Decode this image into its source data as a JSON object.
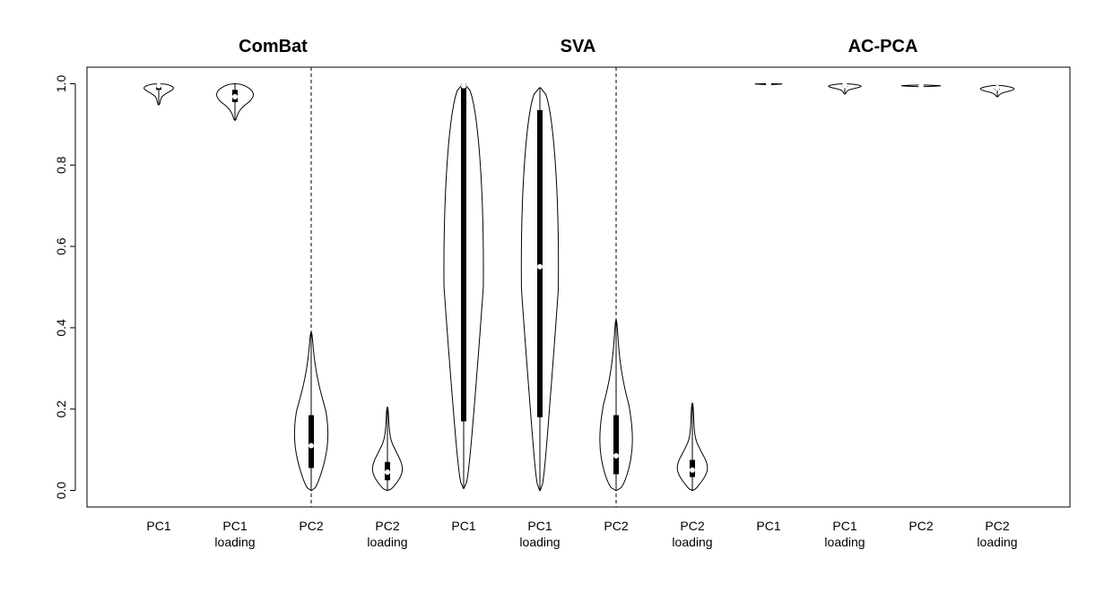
{
  "chart_data": {
    "type": "violin",
    "panels": [
      {
        "title": "ComBat",
        "categories": [
          {
            "label": [
              "PC1",
              ""
            ],
            "min": 0.948,
            "q1": 0.985,
            "median": 0.995,
            "q3": 0.998,
            "max": 1.0,
            "mode": 0.995,
            "width": 0.8
          },
          {
            "label": [
              "PC1",
              "loading"
            ],
            "min": 0.91,
            "q1": 0.955,
            "median": 0.968,
            "q3": 0.985,
            "max": 1.0,
            "mode": 0.985,
            "width": 0.85
          },
          {
            "label": [
              "PC2",
              ""
            ],
            "min": 0.0,
            "q1": 0.055,
            "median": 0.11,
            "q3": 0.185,
            "max": 0.39,
            "mode": 0.1,
            "width": 0.7
          },
          {
            "label": [
              "PC2",
              "loading"
            ],
            "min": 0.0,
            "q1": 0.025,
            "median": 0.045,
            "q3": 0.07,
            "max": 0.205,
            "mode": 0.04,
            "width": 0.7
          }
        ]
      },
      {
        "title": "SVA",
        "categories": [
          {
            "label": [
              "PC1",
              ""
            ],
            "min": 0.005,
            "q1": 0.17,
            "median": 0.995,
            "q3": 1.0,
            "max": 1.0,
            "mode": 0.995,
            "width": 0.85
          },
          {
            "label": [
              "PC1",
              "loading"
            ],
            "min": 0.0,
            "q1": 0.18,
            "median": 0.55,
            "q3": 0.935,
            "max": 0.99,
            "mode": 0.95,
            "width": 0.8
          },
          {
            "label": [
              "PC2",
              ""
            ],
            "min": 0.0,
            "q1": 0.04,
            "median": 0.085,
            "q3": 0.185,
            "max": 0.42,
            "mode": 0.07,
            "width": 0.75
          },
          {
            "label": [
              "PC2",
              "loading"
            ],
            "min": 0.0,
            "q1": 0.033,
            "median": 0.05,
            "q3": 0.075,
            "max": 0.215,
            "mode": 0.045,
            "width": 0.7
          }
        ]
      },
      {
        "title": "AC-PCA",
        "categories": [
          {
            "label": [
              "PC1",
              ""
            ],
            "min": 0.997,
            "q1": 0.999,
            "median": 1.0,
            "q3": 1.0,
            "max": 1.0,
            "mode": 1.0,
            "width": 0.8
          },
          {
            "label": [
              "PC1",
              "loading"
            ],
            "min": 0.975,
            "q1": 0.992,
            "median": 0.996,
            "q3": 0.998,
            "max": 1.0,
            "mode": 0.996,
            "width": 0.8
          },
          {
            "label": [
              "PC2",
              ""
            ],
            "min": 0.993,
            "q1": 0.994,
            "median": 0.995,
            "q3": 0.996,
            "max": 0.997,
            "mode": 0.995,
            "width": 0.7
          },
          {
            "label": [
              "PC2",
              "loading"
            ],
            "min": 0.968,
            "q1": 0.985,
            "median": 0.99,
            "q3": 0.993,
            "max": 0.996,
            "mode": 0.99,
            "width": 0.75
          }
        ]
      }
    ],
    "ylim": [
      0,
      1
    ],
    "yticks": [
      0.0,
      0.2,
      0.4,
      0.6,
      0.8,
      1.0
    ],
    "ytick_labels": [
      "0.0",
      "0.2",
      "0.4",
      "0.6",
      "0.8",
      "1.0"
    ],
    "xlabel": "",
    "ylabel": "",
    "grid": false,
    "legend": "none"
  }
}
